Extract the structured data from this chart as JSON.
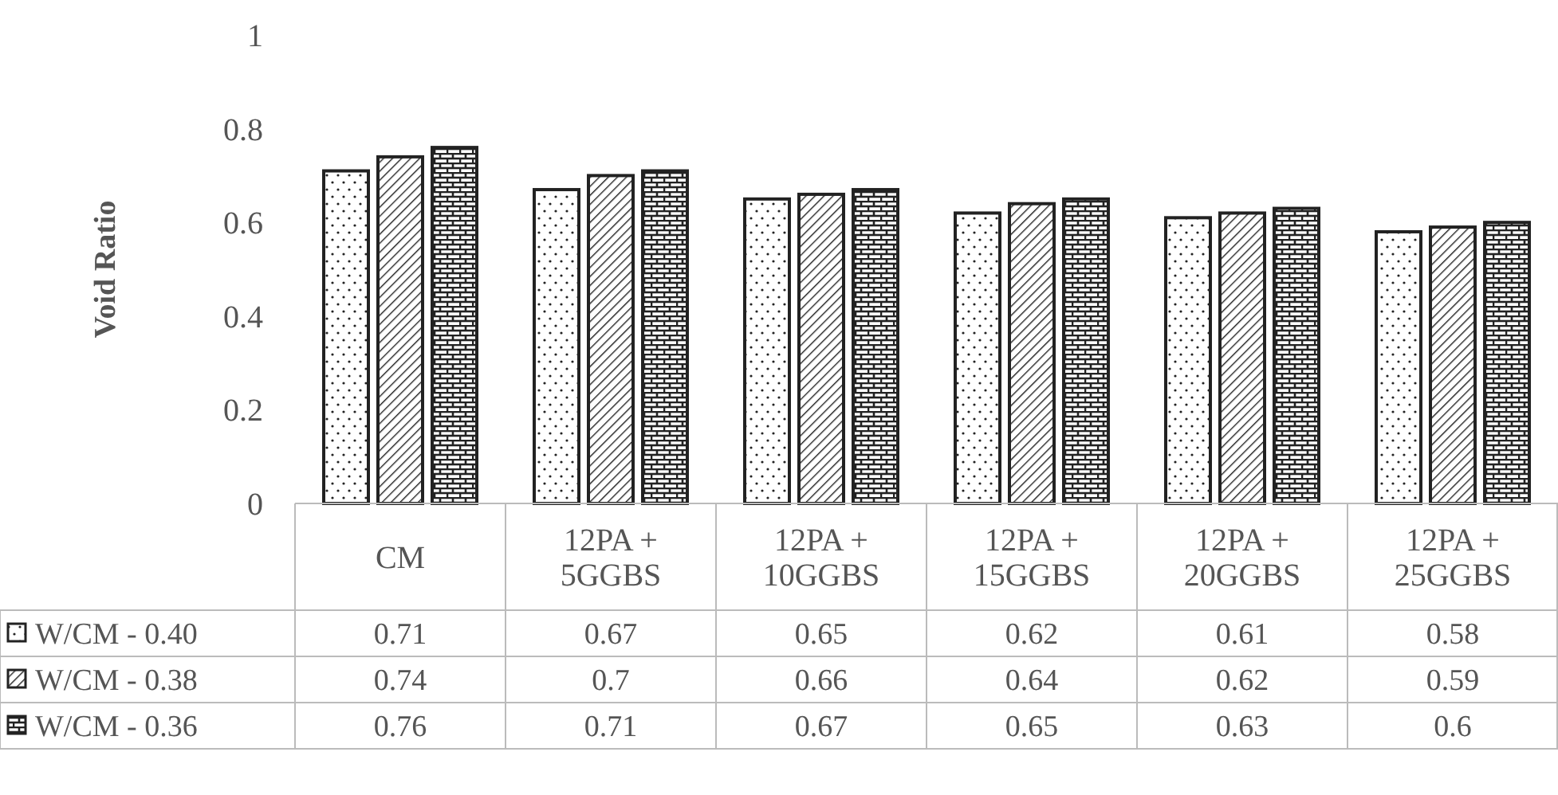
{
  "chart_data": {
    "type": "bar",
    "ylabel": "Void Ratio",
    "categories": [
      "CM",
      "12PA + 5GGBS",
      "12PA + 10GGBS",
      "12PA + 15GGBS",
      "12PA + 20GGBS",
      "12PA + 25GGBS"
    ],
    "series": [
      {
        "name": "W/CM - 0.40",
        "color": "#222222",
        "values": [
          0.71,
          0.67,
          0.65,
          0.62,
          0.61,
          0.58
        ]
      },
      {
        "name": "W/CM - 0.38",
        "color": "#222222",
        "values": [
          0.74,
          0.7,
          0.66,
          0.64,
          0.62,
          0.59
        ]
      },
      {
        "name": "W/CM - 0.36",
        "color": "#222222",
        "values": [
          0.76,
          0.71,
          0.67,
          0.65,
          0.63,
          0.6
        ]
      }
    ],
    "ylim": [
      0,
      1
    ],
    "yticks": [
      0,
      0.2,
      0.4,
      0.6,
      0.8,
      1
    ],
    "grid": false,
    "legend": "bottom left",
    "data_labels": true
  }
}
